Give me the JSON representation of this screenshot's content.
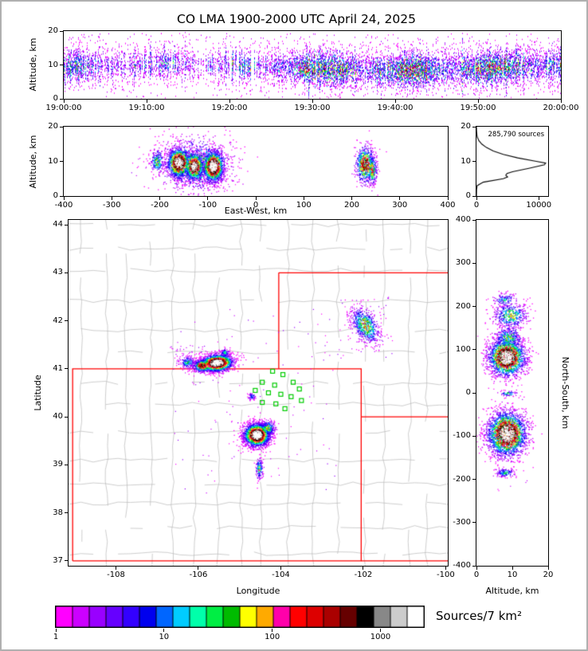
{
  "title": "CO LMA 1900-2000 UTC April 24, 2025",
  "colors": {
    "ramp": [
      "#ff00ff",
      "#cc00ff",
      "#9900ff",
      "#6600ff",
      "#3300ff",
      "#0000ee",
      "#0066ff",
      "#00ccff",
      "#00ffaa",
      "#00ee44",
      "#00bb00",
      "#ffff00",
      "#ffaa00",
      "#ff00aa",
      "#ff0000",
      "#dd0000",
      "#aa0000",
      "#660000",
      "#000000",
      "#888888",
      "#cccccc",
      "#ffffff"
    ],
    "county_line": "#b8b8b8",
    "state_line": "#ff0000",
    "station": "#00cc00",
    "axis": "#000000",
    "profile_line": "#000000"
  },
  "colorbar": {
    "label": "Sources/7 km²",
    "ticks": [
      {
        "f": 0.0,
        "label": "1"
      },
      {
        "f": 0.294,
        "label": "10"
      },
      {
        "f": 0.588,
        "label": "100"
      },
      {
        "f": 0.882,
        "label": "1000"
      }
    ]
  },
  "chart_data": [
    {
      "id": "time_height",
      "type": "scatter",
      "ylabel": "Altitude, km",
      "xlim": [
        0,
        3600
      ],
      "ylim": [
        0,
        20
      ],
      "xticks": [
        {
          "v": 0,
          "label": "19:00:00"
        },
        {
          "v": 600,
          "label": "19:10:00"
        },
        {
          "v": 1200,
          "label": "19:20:00"
        },
        {
          "v": 1800,
          "label": "19:30:00"
        },
        {
          "v": 2400,
          "label": "19:40:00"
        },
        {
          "v": 3000,
          "label": "19:50:00"
        },
        {
          "v": 3600,
          "label": "20:00:00"
        }
      ],
      "yticks": [
        {
          "v": 0,
          "label": "0"
        },
        {
          "v": 10,
          "label": "10"
        },
        {
          "v": 20,
          "label": "20"
        }
      ],
      "streams": {
        "y_center": 9.5,
        "y_sigma": 2.5,
        "phases": [
          {
            "t0": 0.0,
            "t1": 0.1,
            "dmin": 0.2,
            "dmax": 0.75,
            "gap": 0.08
          },
          {
            "t0": 0.1,
            "t1": 0.42,
            "dmin": 0.1,
            "dmax": 0.6,
            "gap": 0.25
          },
          {
            "t0": 0.42,
            "t1": 1.01,
            "dmin": 0.45,
            "dmax": 1.0,
            "gap": 0.02
          }
        ]
      }
    },
    {
      "id": "east_west",
      "type": "scatter",
      "xlabel": "East-West, km",
      "ylabel": "Altitude, km",
      "xlim": [
        -400,
        400
      ],
      "ylim": [
        0,
        20
      ],
      "xticks": [
        {
          "v": -400,
          "label": "-400"
        },
        {
          "v": -300,
          "label": "-300"
        },
        {
          "v": -200,
          "label": "-200"
        },
        {
          "v": -100,
          "label": "-100"
        },
        {
          "v": 0,
          "label": "0"
        },
        {
          "v": 100,
          "label": "100"
        },
        {
          "v": 200,
          "label": "200"
        },
        {
          "v": 300,
          "label": "300"
        },
        {
          "v": 400,
          "label": "400"
        }
      ],
      "yticks": [
        {
          "v": 0,
          "label": "0"
        },
        {
          "v": 10,
          "label": "10"
        },
        {
          "v": 20,
          "label": "20"
        }
      ],
      "clusters": [
        {
          "cx": -125,
          "cy": 9,
          "sx": 42,
          "sy": 4.2,
          "n": 800,
          "core": 0.45
        },
        {
          "cx": -160,
          "cy": 9.5,
          "sx": 12,
          "sy": 2.2,
          "n": 1400,
          "core": 1.0
        },
        {
          "cx": -128,
          "cy": 8.5,
          "sx": 10,
          "sy": 2.0,
          "n": 1100,
          "core": 0.92
        },
        {
          "cx": -88,
          "cy": 8.5,
          "sx": 11,
          "sy": 2.3,
          "n": 1600,
          "core": 1.0
        },
        {
          "cx": -205,
          "cy": 10,
          "sx": 7,
          "sy": 1.7,
          "n": 200,
          "core": 0.5
        },
        {
          "cx": 228,
          "cy": 9,
          "sx": 10,
          "sy": 2.8,
          "n": 650,
          "core": 0.75
        },
        {
          "cx": 243,
          "cy": 7.5,
          "sx": 5,
          "sy": 2.2,
          "n": 250,
          "core": 0.6
        }
      ],
      "sparse": [
        {
          "x0": -260,
          "x1": -150,
          "y0": 6,
          "y1": 13,
          "n": 35,
          "umax": 0.08
        },
        {
          "x0": -150,
          "x1": -40,
          "y0": 2,
          "y1": 16,
          "n": 60,
          "umax": 0.1
        }
      ]
    },
    {
      "id": "histogram",
      "type": "line",
      "annotation": "285,790 sources",
      "xlim": [
        0,
        11500
      ],
      "ylim": [
        0,
        20
      ],
      "xticks": [
        {
          "v": 0,
          "label": "0"
        },
        {
          "v": 10000,
          "label": "10000"
        }
      ],
      "yticks": [
        {
          "v": 0,
          "label": "0"
        },
        {
          "v": 10,
          "label": "10"
        },
        {
          "v": 20,
          "label": "20"
        }
      ],
      "profile": [
        [
          0,
          0
        ],
        [
          2,
          20
        ],
        [
          3,
          120
        ],
        [
          4,
          1100
        ],
        [
          5,
          4300
        ],
        [
          5.5,
          5000
        ],
        [
          6,
          4700
        ],
        [
          6.5,
          4900
        ],
        [
          7,
          5800
        ],
        [
          8,
          8400
        ],
        [
          9,
          10900
        ],
        [
          9.5,
          11100
        ],
        [
          10,
          9600
        ],
        [
          11,
          6600
        ],
        [
          12,
          4300
        ],
        [
          13,
          2700
        ],
        [
          14,
          1600
        ],
        [
          15,
          850
        ],
        [
          16,
          380
        ],
        [
          17,
          130
        ],
        [
          18,
          45
        ],
        [
          19,
          10
        ],
        [
          20,
          0
        ]
      ]
    },
    {
      "id": "map",
      "type": "scatter",
      "xlabel": "Longitude",
      "ylabel": "Latitude",
      "xlim": [
        -109.15,
        -99.95
      ],
      "ylim": [
        36.9,
        44.1
      ],
      "xticks": [
        {
          "v": -108,
          "label": "-108"
        },
        {
          "v": -106,
          "label": "-106"
        },
        {
          "v": -104,
          "label": "-104"
        },
        {
          "v": -102,
          "label": "-102"
        },
        {
          "v": -100,
          "label": "-100"
        }
      ],
      "yticks": [
        {
          "v": 37,
          "label": "37"
        },
        {
          "v": 38,
          "label": "38"
        },
        {
          "v": 39,
          "label": "39"
        },
        {
          "v": 40,
          "label": "40"
        },
        {
          "v": 41,
          "label": "41"
        },
        {
          "v": 42,
          "label": "42"
        },
        {
          "v": 43,
          "label": "43"
        },
        {
          "v": 44,
          "label": "44"
        }
      ],
      "clusters": [
        {
          "cx": -105.55,
          "cy": 41.12,
          "sx": 0.2,
          "sy": 0.09,
          "n": 2200,
          "core": 1.0,
          "tilt": 0.25
        },
        {
          "cx": -105.9,
          "cy": 41.06,
          "sx": 0.12,
          "sy": 0.07,
          "n": 500,
          "core": 0.7
        },
        {
          "cx": -106.25,
          "cy": 41.13,
          "sx": 0.1,
          "sy": 0.07,
          "n": 170,
          "core": 0.38
        },
        {
          "cx": -105.35,
          "cy": 41.33,
          "sx": 0.06,
          "sy": 0.05,
          "n": 80,
          "core": 0.35
        },
        {
          "cx": -104.58,
          "cy": 39.62,
          "sx": 0.16,
          "sy": 0.12,
          "n": 2600,
          "core": 1.0
        },
        {
          "cx": -104.32,
          "cy": 39.76,
          "sx": 0.1,
          "sy": 0.08,
          "n": 280,
          "core": 0.5
        },
        {
          "cx": -101.95,
          "cy": 41.9,
          "sx": 0.16,
          "sy": 0.19,
          "n": 650,
          "core": 0.55,
          "tilt": -0.4
        },
        {
          "cx": -104.52,
          "cy": 38.92,
          "sx": 0.045,
          "sy": 0.11,
          "n": 150,
          "core": 0.5
        },
        {
          "cx": -104.7,
          "cy": 40.42,
          "sx": 0.05,
          "sy": 0.04,
          "n": 50,
          "core": 0.32
        }
      ],
      "sparse": [
        {
          "x0": -106.6,
          "x1": -102.6,
          "y0": 38.4,
          "y1": 42.3,
          "n": 120,
          "umax": 0.1
        },
        {
          "x0": -102.6,
          "x1": -101.3,
          "y0": 41.2,
          "y1": 42.5,
          "n": 60,
          "umax": 0.12
        },
        {
          "x0": -106.7,
          "x1": -105.8,
          "y0": 41.0,
          "y1": 41.5,
          "n": 45,
          "umax": 0.12
        }
      ],
      "stations": [
        [
          -104.2,
          40.95
        ],
        [
          -103.95,
          40.88
        ],
        [
          -104.45,
          40.72
        ],
        [
          -104.15,
          40.66
        ],
        [
          -103.7,
          40.72
        ],
        [
          -103.55,
          40.58
        ],
        [
          -104.3,
          40.5
        ],
        [
          -104.0,
          40.47
        ],
        [
          -103.75,
          40.42
        ],
        [
          -104.45,
          40.3
        ],
        [
          -104.12,
          40.27
        ],
        [
          -103.5,
          40.34
        ],
        [
          -103.9,
          40.17
        ],
        [
          -104.62,
          40.55
        ]
      ],
      "state_lines": [
        [
          [
            -109.05,
            37
          ],
          [
            -109.05,
            41
          ],
          [
            -102.05,
            41
          ],
          [
            -102.05,
            37
          ],
          [
            -109.05,
            37
          ]
        ],
        [
          [
            -104.05,
            41
          ],
          [
            -104.05,
            43
          ]
        ],
        [
          [
            -104.05,
            43
          ],
          [
            -99.95,
            43
          ]
        ],
        [
          [
            -102.05,
            40
          ],
          [
            -99.95,
            40
          ]
        ],
        [
          [
            -102.05,
            37
          ],
          [
            -99.95,
            37
          ]
        ]
      ],
      "county_grid": {
        "lon_step": 0.55,
        "lat_step": 0.5,
        "jitter": 0.08,
        "skip": 0.12
      }
    },
    {
      "id": "north_south",
      "type": "scatter",
      "xlabel": "Altitude, km",
      "ylabel": "North-South, km",
      "xlim": [
        0,
        20
      ],
      "ylim": [
        -400,
        400
      ],
      "xticks": [
        {
          "v": 0,
          "label": "0"
        },
        {
          "v": 10,
          "label": "10"
        },
        {
          "v": 20,
          "label": "20"
        }
      ],
      "yticks": [
        {
          "v": -400,
          "label": "-400"
        },
        {
          "v": -300,
          "label": "-300"
        },
        {
          "v": -200,
          "label": "-200"
        },
        {
          "v": -100,
          "label": "-100"
        },
        {
          "v": 0,
          "label": "0"
        },
        {
          "v": 100,
          "label": "100"
        },
        {
          "v": 200,
          "label": "200"
        },
        {
          "v": 300,
          "label": "300"
        },
        {
          "v": 400,
          "label": "400"
        }
      ],
      "clusters": [
        {
          "cx": 8.5,
          "cy": 82,
          "sx": 2.6,
          "sy": 22,
          "n": 2200,
          "core": 1.0
        },
        {
          "cx": 9,
          "cy": 128,
          "sx": 2.2,
          "sy": 14,
          "n": 320,
          "core": 0.45
        },
        {
          "cx": 9.5,
          "cy": 178,
          "sx": 2.4,
          "sy": 16,
          "n": 420,
          "core": 0.5
        },
        {
          "cx": 8,
          "cy": 215,
          "sx": 1.8,
          "sy": 8,
          "n": 120,
          "core": 0.35
        },
        {
          "cx": 8.5,
          "cy": -95,
          "sx": 2.8,
          "sy": 26,
          "n": 2600,
          "core": 1.0
        },
        {
          "cx": 8,
          "cy": -185,
          "sx": 1.4,
          "sy": 5,
          "n": 130,
          "core": 0.4
        },
        {
          "cx": 9,
          "cy": -2,
          "sx": 1.2,
          "sy": 3,
          "n": 60,
          "core": 0.45
        }
      ],
      "sparse": [
        {
          "x0": 3,
          "x1": 14,
          "y0": -230,
          "y1": 240,
          "n": 70,
          "umax": 0.06
        }
      ]
    }
  ]
}
